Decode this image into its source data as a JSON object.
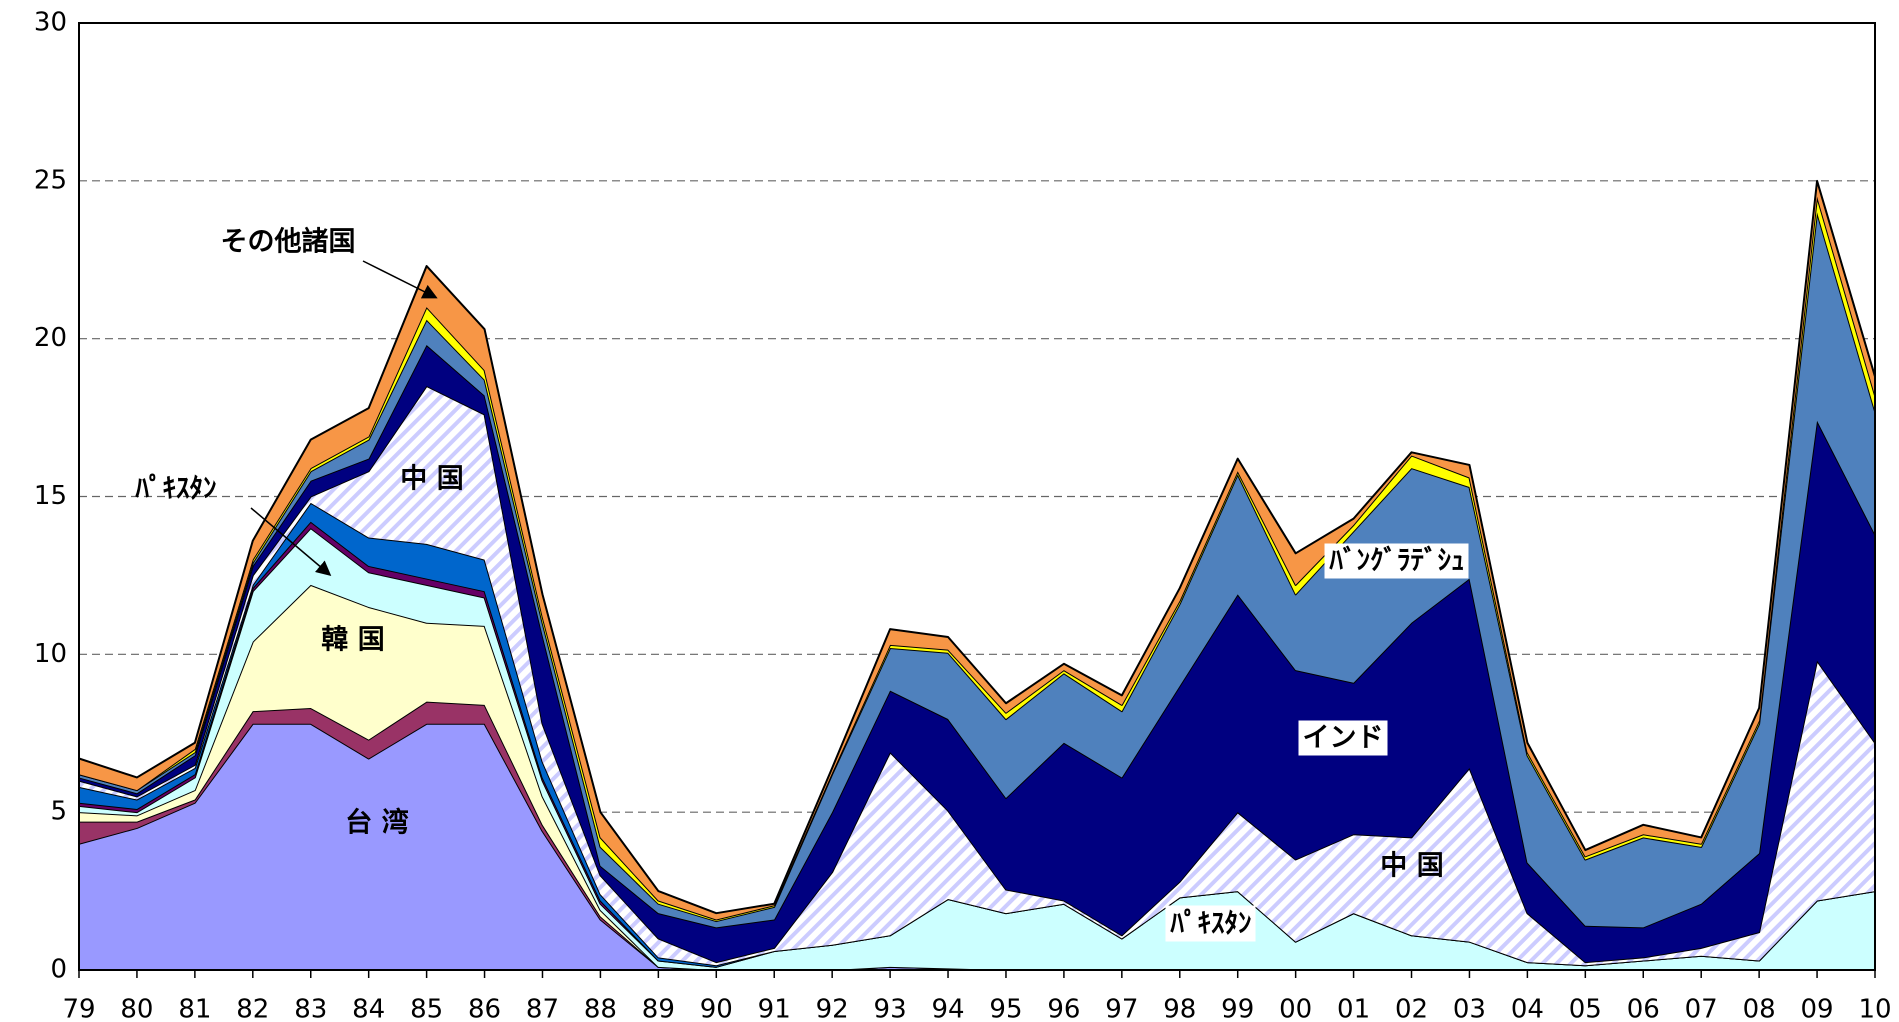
{
  "chart_data": {
    "type": "stacked_area",
    "categories": [
      "79",
      "80",
      "81",
      "82",
      "83",
      "84",
      "85",
      "86",
      "87",
      "88",
      "89",
      "90",
      "91",
      "92",
      "93",
      "94",
      "95",
      "96",
      "97",
      "98",
      "99",
      "00",
      "01",
      "02",
      "03",
      "04",
      "05",
      "06",
      "07",
      "08",
      "09",
      "10"
    ],
    "ylim": [
      0,
      30
    ],
    "yticks": [
      0,
      5,
      10,
      15,
      20,
      25,
      30
    ],
    "grid": true,
    "series": [
      {
        "color": "#9999ff",
        "values": [
          4.0,
          4.5,
          5.3,
          7.8,
          7.8,
          6.7,
          7.8,
          7.8,
          4.4,
          1.6,
          0.1,
          0,
          0,
          0,
          0.1,
          0.05,
          0,
          0,
          0,
          0,
          0,
          0,
          0,
          0,
          0,
          0,
          0,
          0,
          0,
          0,
          0,
          0
        ]
      },
      {
        "color": "#993366",
        "values": [
          0.7,
          0.2,
          0.1,
          0.4,
          0.5,
          0.6,
          0.7,
          0.6,
          0.2,
          0.1,
          0,
          0,
          0,
          0,
          0,
          0,
          0,
          0,
          0,
          0,
          0,
          0,
          0,
          0,
          0,
          0,
          0,
          0,
          0,
          0,
          0,
          0
        ]
      },
      {
        "color": "#ffffcc",
        "values": [
          0.3,
          0.2,
          0.3,
          2.2,
          3.9,
          4.2,
          2.5,
          2.5,
          0.9,
          0.2,
          0,
          0,
          0,
          0,
          0,
          0,
          0,
          0,
          0,
          0,
          0,
          0,
          0,
          0,
          0,
          0,
          0,
          0,
          0,
          0,
          0,
          0
        ]
      },
      {
        "color": "#ccffff",
        "values": [
          0.2,
          0.1,
          0.4,
          1.6,
          1.8,
          1.1,
          1.2,
          0.9,
          0.5,
          0.2,
          0.2,
          0.1,
          0.6,
          0.8,
          1.0,
          2.2,
          1.8,
          2.1,
          1.0,
          2.3,
          2.5,
          0.9,
          1.8,
          1.1,
          0.9,
          0.25,
          0.15,
          0.3,
          0.45,
          0.3,
          2.2,
          2.5
        ]
      },
      {
        "color": "#660066",
        "values": [
          0.1,
          0.1,
          0.1,
          0.1,
          0.2,
          0.2,
          0.2,
          0.2,
          0.1,
          0.1,
          0,
          0,
          0,
          0,
          0,
          0,
          0,
          0,
          0,
          0,
          0,
          0,
          0,
          0,
          0,
          0,
          0,
          0,
          0,
          0,
          0,
          0
        ]
      },
      {
        "color": "#0066cc",
        "values": [
          0.5,
          0.3,
          0.2,
          0.1,
          0.6,
          0.9,
          1.1,
          1.0,
          0.5,
          0.2,
          0.1,
          0.05,
          0,
          0,
          0,
          0,
          0,
          0,
          0,
          0,
          0,
          0,
          0,
          0,
          0,
          0,
          0,
          0,
          0,
          0,
          0,
          0
        ]
      },
      {
        "color": "#ccccff",
        "pattern": "hatch",
        "values": [
          0.2,
          0.1,
          0.1,
          0.3,
          0.2,
          2.1,
          5.0,
          4.6,
          1.2,
          0.6,
          0.6,
          0.1,
          0.1,
          2.3,
          5.8,
          2.8,
          0.75,
          0.1,
          0.1,
          0.5,
          2.5,
          2.6,
          2.5,
          3.1,
          5.5,
          1.55,
          0.1,
          0.1,
          0.25,
          0.9,
          7.6,
          4.7
        ]
      },
      {
        "color": "#000080",
        "values": [
          0.1,
          0.1,
          0.3,
          0.3,
          0.5,
          0.4,
          1.3,
          0.6,
          2.8,
          0.3,
          0.8,
          1.1,
          0.9,
          1.9,
          1.95,
          2.9,
          2.9,
          5.0,
          5.0,
          6.2,
          6.9,
          6.0,
          4.8,
          6.8,
          6.0,
          1.6,
          1.15,
          0.95,
          1.4,
          2.5,
          7.6,
          6.6
        ]
      },
      {
        "color": "#4f81bd",
        "values": [
          0.1,
          0.1,
          0.1,
          0.1,
          0.3,
          0.6,
          0.8,
          0.5,
          0.4,
          0.6,
          0.3,
          0.2,
          0.4,
          1.2,
          1.35,
          2.1,
          2.5,
          2.2,
          2.1,
          2.6,
          3.8,
          2.4,
          4.8,
          4.9,
          2.9,
          3.4,
          2.1,
          2.85,
          1.8,
          4.1,
          6.6,
          3.9
        ]
      },
      {
        "color": "#ffff00",
        "values": [
          0,
          0,
          0.1,
          0.1,
          0.1,
          0.1,
          0.4,
          0.3,
          0.2,
          0.3,
          0.1,
          0.05,
          0.05,
          0.05,
          0.1,
          0.1,
          0.2,
          0.1,
          0.2,
          0.1,
          0.1,
          0.3,
          0.2,
          0.4,
          0.3,
          0.1,
          0.1,
          0.1,
          0.1,
          0.1,
          0.5,
          0.5
        ]
      },
      {
        "color": "#f79646",
        "values": [
          0.5,
          0.4,
          0.2,
          0.6,
          0.9,
          0.9,
          1.3,
          1.3,
          0.7,
          0.8,
          0.3,
          0.2,
          0.05,
          0.15,
          0.5,
          0.4,
          0.3,
          0.2,
          0.3,
          0.4,
          0.4,
          1.0,
          0.2,
          0.1,
          0.4,
          0.3,
          0.2,
          0.3,
          0.2,
          0.4,
          0.5,
          0.6
        ]
      }
    ],
    "annotations": [
      {
        "text": "その他諸国"
      },
      {
        "text": "ﾊﾟｷｽﾀﾝ"
      },
      {
        "text": "中 国"
      },
      {
        "text": "韓 国"
      },
      {
        "text": "台 湾"
      },
      {
        "text": "ﾊﾞﾝｸﾞﾗﾃﾞｼｭ"
      },
      {
        "text": "インド"
      },
      {
        "text": "中 国"
      },
      {
        "text": "ﾊﾟｷｽﾀﾝ"
      }
    ]
  }
}
